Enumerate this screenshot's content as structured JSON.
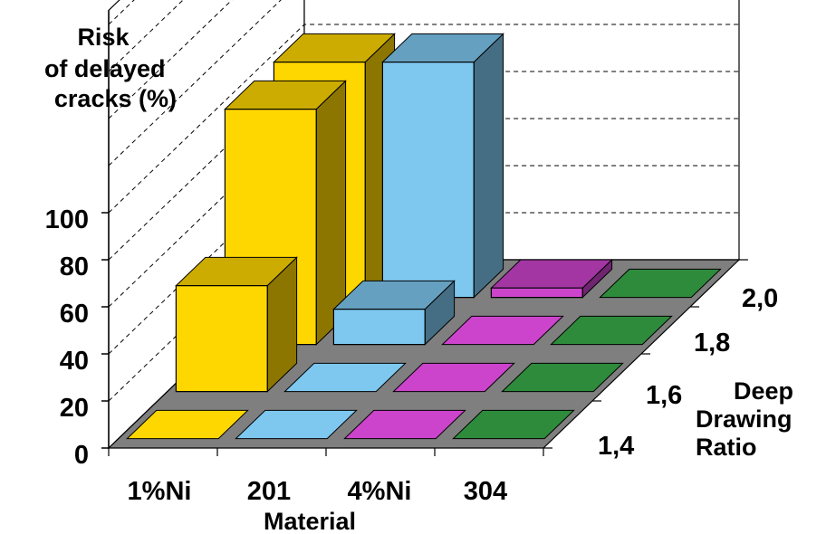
{
  "chart_data": {
    "type": "bar",
    "subtype": "3d-bar",
    "ylabel": "Risk\nof delayed\ncracks (%)",
    "xlabel": "Material",
    "zlabel": "Deep\nDrawing\nRatio",
    "yticks": [
      "0",
      "20",
      "40",
      "60",
      "80",
      "100"
    ],
    "ylim": [
      0,
      100
    ],
    "categories": [
      "1%Ni",
      "201",
      "4%Ni",
      "304"
    ],
    "depth_categories": [
      "1,4",
      "1,6",
      "1,8",
      "2,0"
    ],
    "series": [
      {
        "name": "1%Ni",
        "color": "#ffd700",
        "values": [
          0,
          45,
          100,
          100
        ]
      },
      {
        "name": "201",
        "color": "#7ec8f0",
        "values": [
          0,
          0,
          15,
          100
        ]
      },
      {
        "name": "4%Ni",
        "color": "#cc44cc",
        "values": [
          0,
          0,
          0,
          4
        ]
      },
      {
        "name": "304",
        "color": "#2e8b3c",
        "values": [
          0,
          0,
          0,
          0
        ]
      }
    ],
    "grid": true
  }
}
